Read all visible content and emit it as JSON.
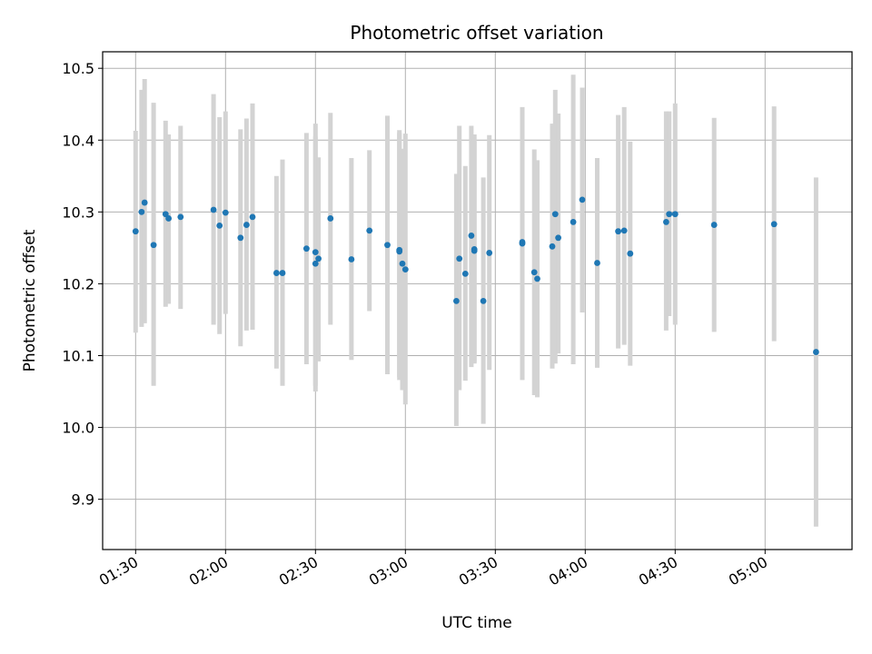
{
  "chart_data": {
    "type": "scatter",
    "title": "Photometric offset variation",
    "xlabel": "UTC time",
    "ylabel": "Photometric offset",
    "x_ticks": [
      "01:30",
      "02:00",
      "02:30",
      "03:00",
      "03:30",
      "04:00",
      "04:30",
      "05:00"
    ],
    "y_ticks": [
      "9.9",
      "10.0",
      "10.1",
      "10.2",
      "10.3",
      "10.4",
      "10.5"
    ],
    "xlim": [
      "01:19",
      "05:29"
    ],
    "ylim": [
      9.83,
      10.523
    ],
    "grid": true,
    "colors": {
      "points": "#1f77b4",
      "error_bars": "#d3d3d3",
      "grid": "#b0b0b0"
    },
    "series": [
      {
        "x": [
          "01:30",
          "01:32",
          "01:33",
          "01:36",
          "01:40",
          "01:41",
          "01:45",
          "01:56",
          "01:58",
          "02:00",
          "02:05",
          "02:07",
          "02:09",
          "02:17",
          "02:19",
          "02:27",
          "02:30",
          "02:30",
          "02:31",
          "02:35",
          "02:42",
          "02:48",
          "02:54",
          "02:58",
          "02:58",
          "02:59",
          "03:00",
          "03:17",
          "03:18",
          "03:20",
          "03:22",
          "03:23",
          "03:23",
          "03:26",
          "03:28",
          "03:39",
          "03:39",
          "03:43",
          "03:44",
          "03:49",
          "03:50",
          "03:51",
          "03:56",
          "03:59",
          "04:04",
          "04:11",
          "04:13",
          "04:15",
          "04:27",
          "04:28",
          "04:30",
          "04:43",
          "05:03",
          "05:17"
        ],
        "y": [
          10.273,
          10.3,
          10.313,
          10.254,
          10.297,
          10.291,
          10.293,
          10.303,
          10.281,
          10.299,
          10.264,
          10.282,
          10.293,
          10.215,
          10.215,
          10.249,
          10.244,
          10.228,
          10.235,
          10.291,
          10.234,
          10.274,
          10.254,
          10.247,
          10.245,
          10.228,
          10.22,
          10.176,
          10.235,
          10.214,
          10.267,
          10.248,
          10.246,
          10.176,
          10.243,
          10.258,
          10.256,
          10.216,
          10.207,
          10.252,
          10.297,
          10.264,
          10.286,
          10.317,
          10.229,
          10.273,
          10.274,
          10.242,
          10.286,
          10.297,
          10.297,
          10.282,
          10.283,
          10.105
        ],
        "err_low": [
          10.132,
          10.14,
          10.145,
          10.058,
          10.168,
          10.172,
          10.165,
          10.143,
          10.13,
          10.158,
          10.113,
          10.135,
          10.136,
          10.082,
          10.058,
          10.088,
          10.05,
          10.058,
          10.092,
          10.143,
          10.094,
          10.162,
          10.074,
          10.07,
          10.066,
          10.052,
          10.032,
          10.002,
          10.052,
          10.065,
          10.084,
          10.089,
          10.091,
          10.005,
          10.08,
          10.066,
          10.077,
          10.045,
          10.042,
          10.082,
          10.089,
          10.103,
          10.088,
          10.16,
          10.083,
          10.11,
          10.115,
          10.086,
          10.135,
          10.155,
          10.143,
          10.133,
          10.12,
          9.862
        ],
        "err_high": [
          10.413,
          10.47,
          10.485,
          10.452,
          10.427,
          10.408,
          10.42,
          10.464,
          10.432,
          10.44,
          10.415,
          10.43,
          10.451,
          10.35,
          10.373,
          10.41,
          10.423,
          10.405,
          10.376,
          10.438,
          10.375,
          10.386,
          10.434,
          10.414,
          10.41,
          10.388,
          10.409,
          10.353,
          10.42,
          10.364,
          10.42,
          10.408,
          10.398,
          10.348,
          10.407,
          10.413,
          10.446,
          10.387,
          10.372,
          10.423,
          10.47,
          10.437,
          10.491,
          10.473,
          10.375,
          10.435,
          10.446,
          10.398,
          10.44,
          10.44,
          10.451,
          10.431,
          10.447,
          10.348
        ]
      }
    ]
  }
}
